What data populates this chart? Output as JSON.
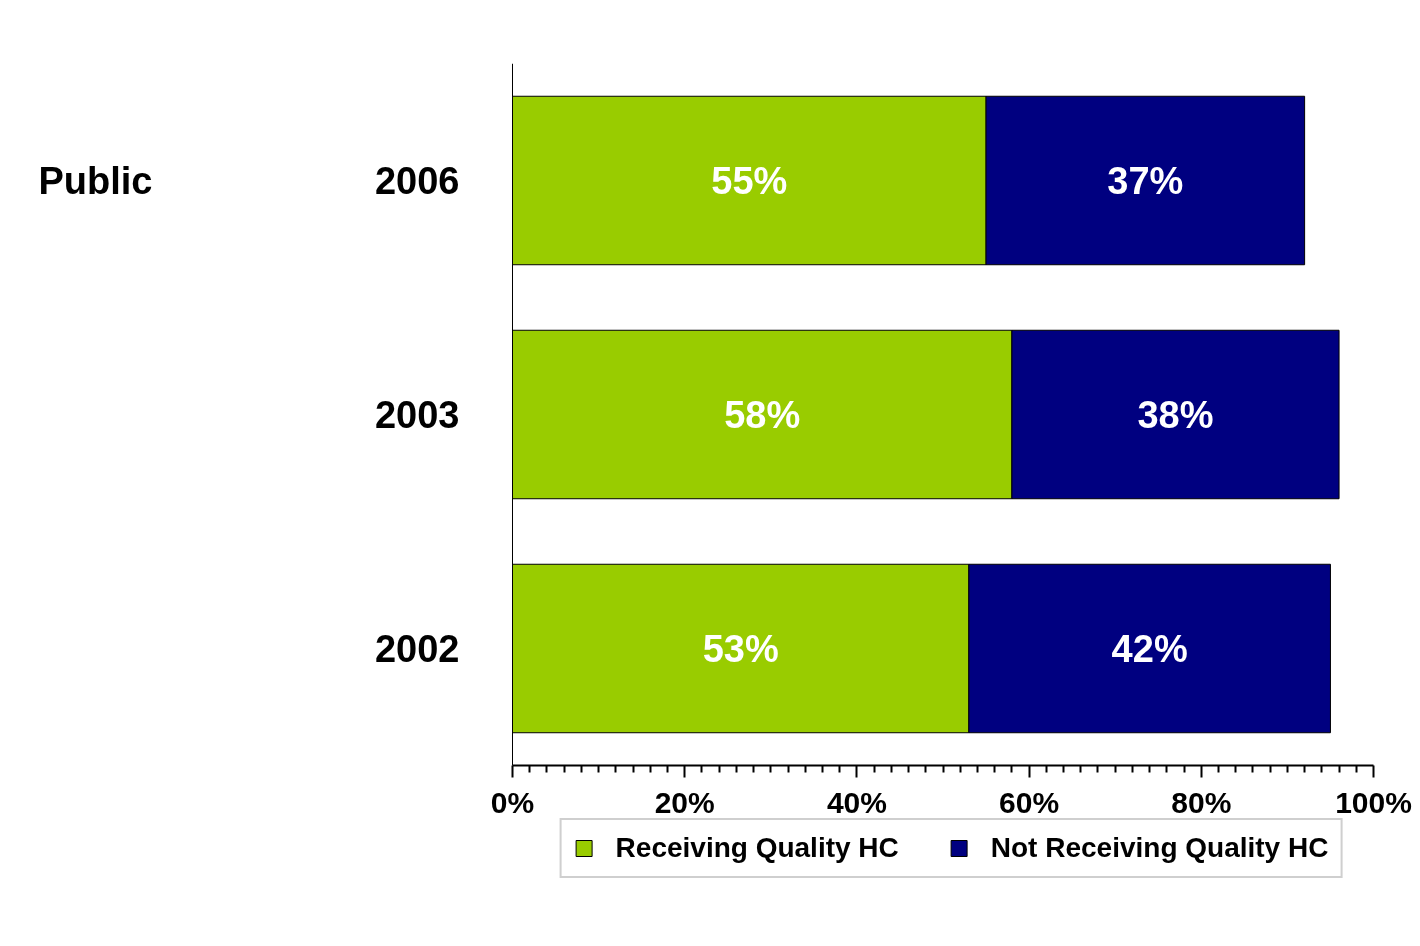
{
  "chart_data": {
    "type": "bar",
    "orientation": "horizontal",
    "stacked": true,
    "categories": [
      "2006",
      "2003",
      "2002"
    ],
    "series": [
      {
        "name": "Receiving Quality HC",
        "color": "#99cc00",
        "values": [
          55,
          58,
          53
        ],
        "value_labels": [
          "55%",
          "58%",
          "53%"
        ]
      },
      {
        "name": "Not Receiving Quality HC",
        "color": "#000080",
        "values": [
          37,
          38,
          42
        ],
        "value_labels": [
          "37%",
          "38%",
          "42%"
        ]
      }
    ],
    "xlim": [
      0,
      100
    ],
    "xticks": [
      {
        "value": 0,
        "label": "0%"
      },
      {
        "value": 2,
        "label": null
      },
      {
        "value": 4,
        "label": null
      },
      {
        "value": 6,
        "label": null
      },
      {
        "value": 8,
        "label": null
      },
      {
        "value": 10,
        "label": null
      },
      {
        "value": 12,
        "label": null
      },
      {
        "value": 14,
        "label": null
      },
      {
        "value": 16,
        "label": null
      },
      {
        "value": 18,
        "label": null
      },
      {
        "value": 20,
        "label": "20%"
      },
      {
        "value": 22,
        "label": null
      },
      {
        "value": 24,
        "label": null
      },
      {
        "value": 26,
        "label": null
      },
      {
        "value": 28,
        "label": null
      },
      {
        "value": 30,
        "label": null
      },
      {
        "value": 32,
        "label": null
      },
      {
        "value": 34,
        "label": null
      },
      {
        "value": 36,
        "label": null
      },
      {
        "value": 38,
        "label": null
      },
      {
        "value": 40,
        "label": "40%"
      },
      {
        "value": 42,
        "label": null
      },
      {
        "value": 44,
        "label": null
      },
      {
        "value": 46,
        "label": null
      },
      {
        "value": 48,
        "label": null
      },
      {
        "value": 50,
        "label": null
      },
      {
        "value": 52,
        "label": null
      },
      {
        "value": 54,
        "label": null
      },
      {
        "value": 56,
        "label": null
      },
      {
        "value": 58,
        "label": null
      },
      {
        "value": 60,
        "label": "60%"
      },
      {
        "value": 62,
        "label": null
      },
      {
        "value": 64,
        "label": null
      },
      {
        "value": 66,
        "label": null
      },
      {
        "value": 68,
        "label": null
      },
      {
        "value": 70,
        "label": null
      },
      {
        "value": 72,
        "label": null
      },
      {
        "value": 74,
        "label": null
      },
      {
        "value": 76,
        "label": null
      },
      {
        "value": 78,
        "label": null
      },
      {
        "value": 80,
        "label": "80%"
      },
      {
        "value": 82,
        "label": null
      },
      {
        "value": 84,
        "label": null
      },
      {
        "value": 86,
        "label": null
      },
      {
        "value": 88,
        "label": null
      },
      {
        "value": 90,
        "label": null
      },
      {
        "value": 92,
        "label": null
      },
      {
        "value": 94,
        "label": null
      },
      {
        "value": 96,
        "label": null
      },
      {
        "value": 98,
        "label": null
      },
      {
        "value": 100,
        "label": "100%"
      }
    ],
    "annotations": [
      "Public"
    ],
    "legend": "bottom"
  }
}
